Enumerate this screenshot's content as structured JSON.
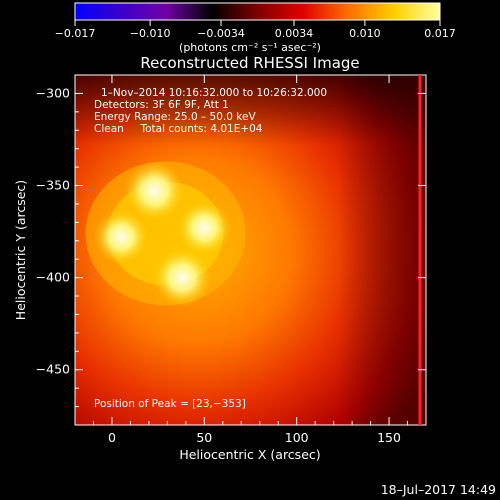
{
  "chart_data": {
    "type": "heatmap",
    "title": "Reconstructed RHESSI Image",
    "colorbar": {
      "ticks": [
        "−0.017",
        "−0.010",
        "−0.0034",
        "0.0034",
        "0.010",
        "0.017"
      ],
      "values": [
        -0.017,
        -0.01,
        -0.0034,
        0.0034,
        0.01,
        0.017
      ],
      "range": [
        -0.017,
        0.017
      ],
      "unit_label": "(photons cm⁻² s⁻¹ asec⁻²)",
      "colors": [
        "#0000ff",
        "#3a00c8",
        "#7000a8",
        "#000000",
        "#800000",
        "#e00000",
        "#ff7000",
        "#ffd000",
        "#ffffa0"
      ]
    },
    "xlabel": "Heliocentric X (arcsec)",
    "ylabel": "Heliocentric Y (arcsec)",
    "xlim": [
      -20,
      170
    ],
    "ylim": [
      -480,
      -290
    ],
    "xticks": [
      0,
      50,
      100,
      150
    ],
    "yticks": [
      -300,
      -350,
      -400,
      -450
    ],
    "xtick_labels": [
      "0",
      "50",
      "100",
      "150"
    ],
    "ytick_labels": [
      "−300",
      "−350",
      "−400",
      "−450"
    ],
    "annotations": [
      "1–Nov–2014 10:16:32.000 to 10:26:32.000",
      "Detectors: 3F 6F 9F, Att 1",
      "Energy Range: 25.0 – 50.0 keV",
      "Clean     Total counts: 4.01E+04"
    ],
    "peak_label": "Position of Peak = [23,−353]",
    "peak": [
      23,
      -353
    ],
    "sources": [
      {
        "x": 23,
        "y": -353,
        "relative": 1.0
      },
      {
        "x": 38,
        "y": -400,
        "relative": 0.95
      },
      {
        "x": 5,
        "y": -378,
        "relative": 0.8
      },
      {
        "x": 50,
        "y": -373,
        "relative": 0.78
      }
    ]
  },
  "footer": {
    "timestamp": "18–Jul–2017 14:49"
  }
}
